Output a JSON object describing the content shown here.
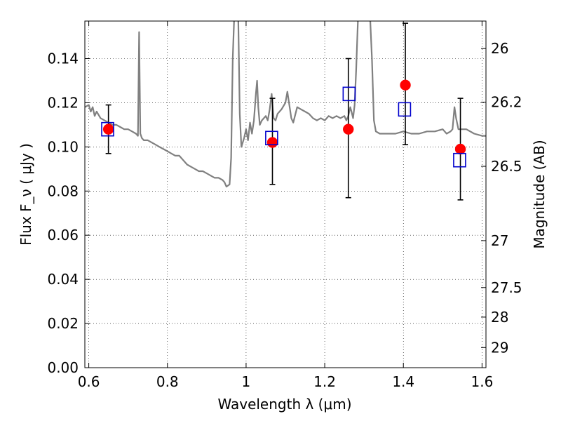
{
  "chart_data": {
    "type": "scatter",
    "xlabel": "Wavelength  λ (μm)",
    "ylabel": "Flux  F_ν  ( μJy )",
    "ylabel_right": "Magnitude (AB)",
    "xlim": [
      0.59,
      1.61
    ],
    "ylim": [
      0.0,
      0.157
    ],
    "grid": true,
    "x_ticks": [
      {
        "value": 0.6,
        "label": "0.6"
      },
      {
        "value": 0.8,
        "label": "0.8"
      },
      {
        "value": 1.0,
        "label": "1"
      },
      {
        "value": 1.2,
        "label": "1.2"
      },
      {
        "value": 1.4,
        "label": "1.4"
      },
      {
        "value": 1.6,
        "label": "1.6"
      }
    ],
    "y_ticks": [
      {
        "value": 0.0,
        "label": "0.00"
      },
      {
        "value": 0.02,
        "label": "0.02"
      },
      {
        "value": 0.04,
        "label": "0.04"
      },
      {
        "value": 0.06,
        "label": "0.06"
      },
      {
        "value": 0.08,
        "label": "0.08"
      },
      {
        "value": 0.1,
        "label": "0.10"
      },
      {
        "value": 0.12,
        "label": "0.12"
      },
      {
        "value": 0.14,
        "label": "0.14"
      }
    ],
    "right_ticks": [
      {
        "mag": 26,
        "label": "26"
      },
      {
        "mag": 26.2,
        "label": "26.2"
      },
      {
        "mag": 26.5,
        "label": "26.5"
      },
      {
        "mag": 27,
        "label": "27"
      },
      {
        "mag": 27.5,
        "label": "27.5"
      },
      {
        "mag": 28,
        "label": "28"
      },
      {
        "mag": 29,
        "label": "29"
      }
    ],
    "series": [
      {
        "kind": "line",
        "color": "#808080",
        "points": [
          [
            0.59,
            0.118
          ],
          [
            0.6,
            0.119
          ],
          [
            0.605,
            0.116
          ],
          [
            0.61,
            0.118
          ],
          [
            0.615,
            0.114
          ],
          [
            0.62,
            0.116
          ],
          [
            0.63,
            0.113
          ],
          [
            0.64,
            0.112
          ],
          [
            0.65,
            0.111
          ],
          [
            0.66,
            0.11
          ],
          [
            0.67,
            0.11
          ],
          [
            0.68,
            0.109
          ],
          [
            0.69,
            0.108
          ],
          [
            0.7,
            0.108
          ],
          [
            0.71,
            0.107
          ],
          [
            0.72,
            0.106
          ],
          [
            0.725,
            0.105
          ],
          [
            0.728,
            0.152
          ],
          [
            0.731,
            0.106
          ],
          [
            0.735,
            0.104
          ],
          [
            0.74,
            0.103
          ],
          [
            0.75,
            0.103
          ],
          [
            0.76,
            0.102
          ],
          [
            0.77,
            0.101
          ],
          [
            0.78,
            0.1
          ],
          [
            0.79,
            0.099
          ],
          [
            0.8,
            0.098
          ],
          [
            0.81,
            0.097
          ],
          [
            0.82,
            0.096
          ],
          [
            0.83,
            0.096
          ],
          [
            0.84,
            0.094
          ],
          [
            0.85,
            0.092
          ],
          [
            0.86,
            0.091
          ],
          [
            0.87,
            0.09
          ],
          [
            0.88,
            0.089
          ],
          [
            0.89,
            0.089
          ],
          [
            0.9,
            0.088
          ],
          [
            0.91,
            0.087
          ],
          [
            0.92,
            0.086
          ],
          [
            0.93,
            0.086
          ],
          [
            0.94,
            0.085
          ],
          [
            0.945,
            0.084
          ],
          [
            0.95,
            0.082
          ],
          [
            0.958,
            0.083
          ],
          [
            0.962,
            0.095
          ],
          [
            0.966,
            0.14
          ],
          [
            0.97,
            0.16
          ],
          [
            0.975,
            0.16
          ],
          [
            0.98,
            0.16
          ],
          [
            0.984,
            0.115
          ],
          [
            0.988,
            0.1
          ],
          [
            0.995,
            0.104
          ],
          [
            1.0,
            0.108
          ],
          [
            1.005,
            0.103
          ],
          [
            1.01,
            0.111
          ],
          [
            1.015,
            0.106
          ],
          [
            1.02,
            0.112
          ],
          [
            1.025,
            0.124
          ],
          [
            1.028,
            0.13
          ],
          [
            1.031,
            0.118
          ],
          [
            1.035,
            0.11
          ],
          [
            1.04,
            0.112
          ],
          [
            1.05,
            0.114
          ],
          [
            1.055,
            0.112
          ],
          [
            1.06,
            0.117
          ],
          [
            1.065,
            0.124
          ],
          [
            1.07,
            0.113
          ],
          [
            1.075,
            0.112
          ],
          [
            1.08,
            0.115
          ],
          [
            1.09,
            0.117
          ],
          [
            1.1,
            0.12
          ],
          [
            1.105,
            0.125
          ],
          [
            1.11,
            0.119
          ],
          [
            1.115,
            0.113
          ],
          [
            1.12,
            0.111
          ],
          [
            1.13,
            0.118
          ],
          [
            1.14,
            0.117
          ],
          [
            1.15,
            0.116
          ],
          [
            1.16,
            0.115
          ],
          [
            1.17,
            0.113
          ],
          [
            1.18,
            0.112
          ],
          [
            1.19,
            0.113
          ],
          [
            1.2,
            0.112
          ],
          [
            1.21,
            0.114
          ],
          [
            1.22,
            0.113
          ],
          [
            1.23,
            0.114
          ],
          [
            1.24,
            0.113
          ],
          [
            1.25,
            0.114
          ],
          [
            1.255,
            0.112
          ],
          [
            1.26,
            0.114
          ],
          [
            1.265,
            0.118
          ],
          [
            1.268,
            0.116
          ],
          [
            1.272,
            0.113
          ],
          [
            1.276,
            0.119
          ],
          [
            1.28,
            0.135
          ],
          [
            1.285,
            0.16
          ],
          [
            1.3,
            0.16
          ],
          [
            1.315,
            0.16
          ],
          [
            1.32,
            0.14
          ],
          [
            1.325,
            0.112
          ],
          [
            1.33,
            0.107
          ],
          [
            1.34,
            0.106
          ],
          [
            1.36,
            0.106
          ],
          [
            1.38,
            0.106
          ],
          [
            1.4,
            0.107
          ],
          [
            1.42,
            0.106
          ],
          [
            1.44,
            0.106
          ],
          [
            1.46,
            0.107
          ],
          [
            1.48,
            0.107
          ],
          [
            1.5,
            0.108
          ],
          [
            1.51,
            0.106
          ],
          [
            1.52,
            0.107
          ],
          [
            1.525,
            0.108
          ],
          [
            1.53,
            0.118
          ],
          [
            1.534,
            0.113
          ],
          [
            1.54,
            0.108
          ],
          [
            1.56,
            0.108
          ],
          [
            1.58,
            0.106
          ],
          [
            1.6,
            0.105
          ],
          [
            1.61,
            0.105
          ]
        ]
      },
      {
        "kind": "errorbar",
        "name": "",
        "color": "#ff0000",
        "points": [
          {
            "x": 0.65,
            "y": 0.108,
            "yerr_low": 0.011,
            "yerr_high": 0.011
          },
          {
            "x": 1.067,
            "y": 0.102,
            "yerr_low": 0.019,
            "yerr_high": 0.02
          },
          {
            "x": 1.26,
            "y": 0.108,
            "yerr_low": 0.031,
            "yerr_high": 0.032
          },
          {
            "x": 1.405,
            "y": 0.128,
            "yerr_low": 0.027,
            "yerr_high": 0.028
          },
          {
            "x": 1.545,
            "y": 0.099,
            "yerr_low": 0.023,
            "yerr_high": 0.023
          }
        ]
      },
      {
        "kind": "scatter",
        "marker": "square",
        "name": "",
        "color": "#0000cc",
        "points": [
          {
            "x": 0.648,
            "y": 0.108
          },
          {
            "x": 1.065,
            "y": 0.104
          },
          {
            "x": 1.262,
            "y": 0.124
          },
          {
            "x": 1.403,
            "y": 0.117
          },
          {
            "x": 1.543,
            "y": 0.094
          }
        ]
      }
    ]
  }
}
